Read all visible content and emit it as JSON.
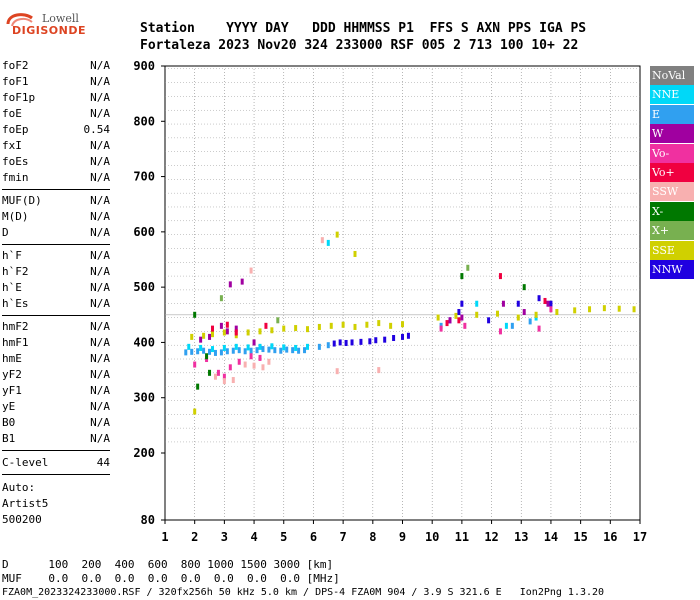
{
  "logo": {
    "brand_top": "Lowell",
    "brand_bottom": "DIGISONDE"
  },
  "header": {
    "row1": "Station    YYYY DAY   DDD HHMMSS P1  FFS S AXN PPS IGA PS",
    "row2": "Fortaleza 2023 Nov20 324 233000 RSF 005 2 713 100 10+ 22"
  },
  "params_a": [
    {
      "k": "foF2",
      "v": "N/A"
    },
    {
      "k": "foF1",
      "v": "N/A"
    },
    {
      "k": "foF1p",
      "v": "N/A"
    },
    {
      "k": "foE",
      "v": "N/A"
    },
    {
      "k": "foEp",
      "v": "0.54"
    },
    {
      "k": "fxI",
      "v": "N/A"
    },
    {
      "k": "foEs",
      "v": "N/A"
    },
    {
      "k": "fmin",
      "v": "N/A"
    }
  ],
  "params_b": [
    {
      "k": "MUF(D)",
      "v": "N/A"
    },
    {
      "k": "M(D)",
      "v": "N/A"
    },
    {
      "k": "D",
      "v": "N/A"
    }
  ],
  "params_c": [
    {
      "k": "h`F",
      "v": "N/A"
    },
    {
      "k": "h`F2",
      "v": "N/A"
    },
    {
      "k": "h`E",
      "v": "N/A"
    },
    {
      "k": "h`Es",
      "v": "N/A"
    }
  ],
  "params_d": [
    {
      "k": "hmF2",
      "v": "N/A"
    },
    {
      "k": "hmF1",
      "v": "N/A"
    },
    {
      "k": "hmE",
      "v": "N/A"
    },
    {
      "k": "yF2",
      "v": "N/A"
    },
    {
      "k": "yF1",
      "v": "N/A"
    },
    {
      "k": "yE",
      "v": "N/A"
    },
    {
      "k": "B0",
      "v": "N/A"
    },
    {
      "k": "B1",
      "v": "N/A"
    }
  ],
  "clevel": {
    "k": "C-level",
    "v": "44"
  },
  "auto": {
    "line1": "Auto:",
    "line2": "Artist5",
    "line3": "500200"
  },
  "legend": [
    {
      "name": "NoVal",
      "color": "#808080"
    },
    {
      "name": "NNE",
      "color": "#00d8f8"
    },
    {
      "name": "E",
      "color": "#30a0f0"
    },
    {
      "name": "W",
      "color": "#a000a0"
    },
    {
      "name": "Vo-",
      "color": "#f030a0"
    },
    {
      "name": "Vo+",
      "color": "#f00040"
    },
    {
      "name": "SSW",
      "color": "#f8b0b0"
    },
    {
      "name": "X-",
      "color": "#007800"
    },
    {
      "name": "X+",
      "color": "#78b050"
    },
    {
      "name": "SSE",
      "color": "#d0d000"
    },
    {
      "name": "NNW",
      "color": "#2000e0"
    }
  ],
  "bottom": {
    "d_line": "D      100  200  400  600  800 1000 1500 3000 [km]",
    "muf_line": "MUF    0.0  0.0  0.0  0.0  0.0  0.0  0.0  0.0 [MHz]",
    "file_line": "FZA0M_2023324233000.RSF / 320fx256h 50 kHz 5.0 km / DPS-4 FZA0M 904 / 3.9 S 321.6 E   Ion2Png 1.3.20"
  },
  "chart_data": {
    "type": "scatter",
    "title": "",
    "xlabel": "",
    "ylabel": "",
    "xlim": [
      1,
      17
    ],
    "ylim": [
      80,
      900
    ],
    "x_ticks": [
      1,
      2,
      3,
      4,
      5,
      6,
      7,
      8,
      9,
      10,
      11,
      12,
      13,
      14,
      15,
      16,
      17
    ],
    "y_ticks": [
      80,
      200,
      300,
      400,
      500,
      600,
      700,
      800,
      900
    ],
    "grid": true,
    "series": [
      {
        "name": "E",
        "color": "#30a0f0",
        "points": [
          [
            1.7,
            382
          ],
          [
            1.9,
            383
          ],
          [
            2.1,
            384
          ],
          [
            2.3,
            385
          ],
          [
            2.5,
            383
          ],
          [
            2.7,
            381
          ],
          [
            2.9,
            382
          ],
          [
            3.1,
            384
          ],
          [
            3.3,
            385
          ],
          [
            3.5,
            386
          ],
          [
            3.7,
            384
          ],
          [
            3.9,
            385
          ],
          [
            4.1,
            386
          ],
          [
            4.3,
            388
          ],
          [
            4.5,
            387
          ],
          [
            4.7,
            386
          ],
          [
            4.9,
            385
          ],
          [
            5.1,
            387
          ],
          [
            5.3,
            386
          ],
          [
            5.5,
            385
          ],
          [
            5.7,
            386
          ],
          [
            6.2,
            392
          ],
          [
            6.5,
            395
          ],
          [
            10.3,
            430
          ],
          [
            12.7,
            430
          ],
          [
            13.3,
            438
          ]
        ]
      },
      {
        "name": "NNE",
        "color": "#00d8f8",
        "points": [
          [
            1.8,
            392
          ],
          [
            2.2,
            390
          ],
          [
            2.6,
            388
          ],
          [
            3.0,
            390
          ],
          [
            3.4,
            392
          ],
          [
            3.8,
            391
          ],
          [
            4.2,
            392
          ],
          [
            4.6,
            393
          ],
          [
            5.0,
            391
          ],
          [
            5.4,
            390
          ],
          [
            5.8,
            392
          ],
          [
            6.5,
            580
          ],
          [
            11.5,
            470
          ],
          [
            12.5,
            430
          ],
          [
            13.5,
            445
          ]
        ]
      },
      {
        "name": "NNW",
        "color": "#2000e0",
        "points": [
          [
            6.7,
            398
          ],
          [
            6.9,
            400
          ],
          [
            7.1,
            399
          ],
          [
            7.3,
            400
          ],
          [
            7.6,
            401
          ],
          [
            7.9,
            402
          ],
          [
            8.1,
            404
          ],
          [
            8.4,
            405
          ],
          [
            8.7,
            408
          ],
          [
            9.0,
            410
          ],
          [
            9.2,
            412
          ],
          [
            10.6,
            440
          ],
          [
            10.9,
            455
          ],
          [
            11.0,
            470
          ],
          [
            11.9,
            440
          ],
          [
            12.9,
            470
          ],
          [
            13.6,
            480
          ],
          [
            14.0,
            470
          ]
        ]
      },
      {
        "name": "SSE",
        "color": "#d0d000",
        "points": [
          [
            1.9,
            410
          ],
          [
            2.3,
            412
          ],
          [
            2.6,
            415
          ],
          [
            3.0,
            418
          ],
          [
            3.4,
            413
          ],
          [
            3.8,
            418
          ],
          [
            4.2,
            420
          ],
          [
            4.6,
            422
          ],
          [
            5.0,
            425
          ],
          [
            5.4,
            426
          ],
          [
            5.8,
            424
          ],
          [
            6.2,
            428
          ],
          [
            6.6,
            430
          ],
          [
            7.0,
            432
          ],
          [
            7.4,
            428
          ],
          [
            7.8,
            432
          ],
          [
            8.2,
            435
          ],
          [
            8.6,
            430
          ],
          [
            9.0,
            433
          ],
          [
            10.2,
            445
          ],
          [
            10.8,
            448
          ],
          [
            11.5,
            450
          ],
          [
            12.2,
            452
          ],
          [
            12.9,
            445
          ],
          [
            13.5,
            450
          ],
          [
            14.2,
            455
          ],
          [
            14.8,
            458
          ],
          [
            15.3,
            460
          ],
          [
            15.8,
            462
          ],
          [
            16.3,
            461
          ],
          [
            16.8,
            460
          ],
          [
            2.0,
            275
          ],
          [
            6.8,
            595
          ],
          [
            7.4,
            560
          ]
        ]
      },
      {
        "name": "Vo-",
        "color": "#f030a0",
        "points": [
          [
            2.0,
            360
          ],
          [
            2.4,
            370
          ],
          [
            2.8,
            345
          ],
          [
            3.0,
            338
          ],
          [
            3.2,
            355
          ],
          [
            3.5,
            365
          ],
          [
            3.9,
            375
          ],
          [
            4.2,
            372
          ],
          [
            10.3,
            425
          ],
          [
            11.1,
            430
          ],
          [
            12.3,
            420
          ],
          [
            13.6,
            425
          ],
          [
            14.0,
            460
          ]
        ]
      },
      {
        "name": "W",
        "color": "#a000a0",
        "points": [
          [
            2.2,
            405
          ],
          [
            2.5,
            410
          ],
          [
            2.9,
            430
          ],
          [
            3.1,
            420
          ],
          [
            3.4,
            425
          ],
          [
            3.2,
            505
          ],
          [
            3.6,
            510
          ],
          [
            4.0,
            400
          ],
          [
            10.6,
            440
          ],
          [
            11.0,
            445
          ],
          [
            12.4,
            470
          ],
          [
            13.1,
            455
          ],
          [
            13.9,
            470
          ]
        ]
      },
      {
        "name": "Vo+",
        "color": "#f00040",
        "points": [
          [
            2.6,
            425
          ],
          [
            3.1,
            432
          ],
          [
            3.4,
            418
          ],
          [
            4.4,
            430
          ],
          [
            10.5,
            435
          ],
          [
            10.9,
            440
          ],
          [
            12.3,
            520
          ],
          [
            13.8,
            475
          ]
        ]
      },
      {
        "name": "SSW",
        "color": "#f8b0b0",
        "points": [
          [
            2.7,
            338
          ],
          [
            3.0,
            330
          ],
          [
            3.3,
            332
          ],
          [
            3.7,
            360
          ],
          [
            4.0,
            358
          ],
          [
            4.3,
            355
          ],
          [
            4.5,
            365
          ],
          [
            6.8,
            348
          ],
          [
            8.2,
            350
          ],
          [
            3.9,
            530
          ],
          [
            6.3,
            585
          ]
        ]
      },
      {
        "name": "X-",
        "color": "#007800",
        "points": [
          [
            2.0,
            450
          ],
          [
            2.1,
            320
          ],
          [
            2.5,
            345
          ],
          [
            2.4,
            375
          ],
          [
            11.0,
            520
          ],
          [
            13.1,
            500
          ]
        ]
      },
      {
        "name": "X+",
        "color": "#78b050",
        "points": [
          [
            2.9,
            480
          ],
          [
            4.8,
            440
          ],
          [
            11.2,
            535
          ]
        ]
      },
      {
        "name": "NoVal",
        "color": "#808080",
        "points": []
      }
    ]
  }
}
